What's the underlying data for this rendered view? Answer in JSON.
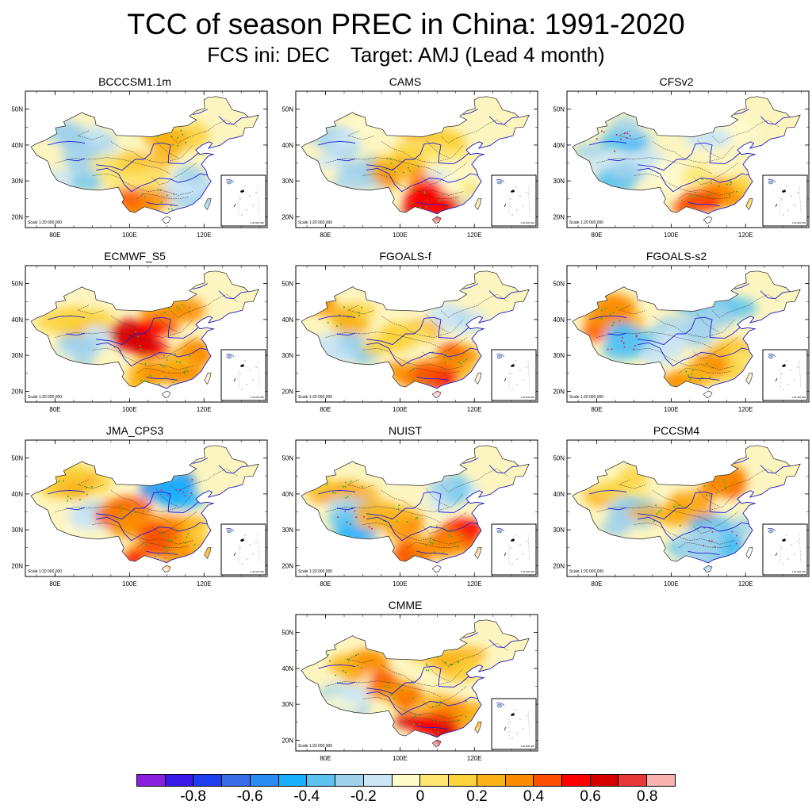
{
  "figure": {
    "title": "TCC of season PREC in China: 1991-2020",
    "subtitle_ini": "FCS ini: DEC",
    "subtitle_target": "Target: AMJ (Lead 4 month)"
  },
  "axes": {
    "lat_labels": [
      "50N",
      "40N",
      "30N",
      "20N"
    ],
    "lon_labels": [
      "80E",
      "100E",
      "120E"
    ],
    "scale_text": "Scale 1:20 000 000",
    "inset_text": "1:40 000 000"
  },
  "colors": {
    "land_base": "#fdf5c0",
    "boundary": "#1c20d8",
    "dot_positive": "#27b533",
    "dot_negative": "#d0286c"
  },
  "panels": [
    {
      "name": "BCCCSM1.1m",
      "palette_index": [
        7,
        12,
        7,
        11,
        8,
        13
      ]
    },
    {
      "name": "CAMS",
      "palette_index": [
        8,
        11,
        7,
        12,
        9,
        15
      ]
    },
    {
      "name": "CFSv2",
      "palette_index": [
        6,
        8,
        7,
        9,
        12,
        14
      ]
    },
    {
      "name": "ECMWF_S5",
      "palette_index": [
        11,
        13,
        7,
        16,
        12,
        13
      ]
    },
    {
      "name": "FGOALS-f",
      "palette_index": [
        12,
        8,
        7,
        11,
        13,
        14
      ]
    },
    {
      "name": "FGOALS-s2",
      "palette_index": [
        13,
        7,
        6,
        8,
        11,
        12
      ]
    },
    {
      "name": "JMA_CPS3",
      "palette_index": [
        12,
        5,
        8,
        13,
        12,
        14
      ]
    },
    {
      "name": "NUIST",
      "palette_index": [
        12,
        7,
        6,
        12,
        14,
        13
      ]
    },
    {
      "name": "PCCSM4",
      "palette_index": [
        11,
        13,
        7,
        12,
        6,
        7
      ]
    },
    {
      "name": "CMME",
      "palette_index": [
        12,
        12,
        8,
        13,
        13,
        15
      ]
    }
  ],
  "colorbar": {
    "colors": [
      "#8a1fe0",
      "#3a1ae8",
      "#1e3ef0",
      "#3a6ee6",
      "#2a8cf0",
      "#1ab0ff",
      "#5cc4f0",
      "#a0d2ec",
      "#cce6f5",
      "#fffccc",
      "#fde770",
      "#fbd33c",
      "#fbb318",
      "#fb8c00",
      "#fc5000",
      "#ff0000",
      "#d60000",
      "#e8393a",
      "#f9b4b2"
    ],
    "labels": [
      "-0.8",
      "-0.6",
      "-0.4",
      "-0.2",
      "0",
      "0.2",
      "0.4",
      "0.6",
      "0.8"
    ]
  }
}
